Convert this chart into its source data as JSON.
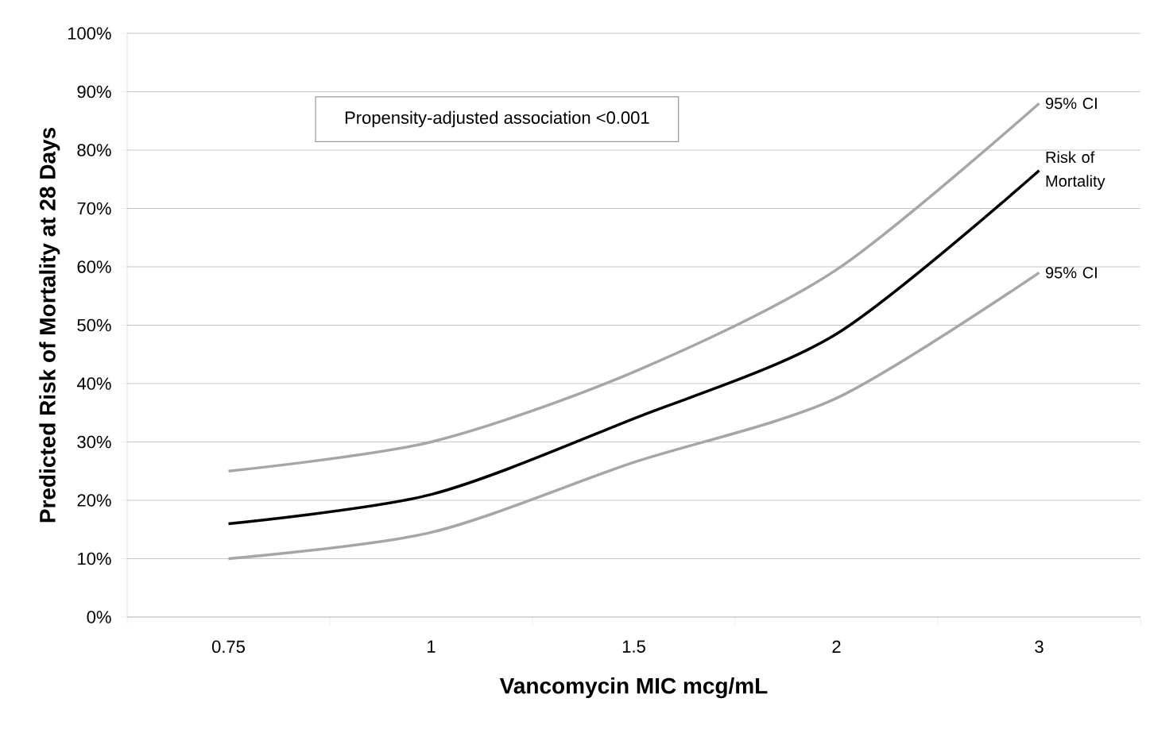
{
  "chart_data": {
    "type": "line",
    "xlabel": "Vancomycin MIC mcg/mL",
    "ylabel": "Predicted Risk of Mortality at 28 Days",
    "categories": [
      "0.75",
      "1",
      "1.5",
      "2",
      "3"
    ],
    "series": [
      {
        "name": "95% CI",
        "color": "#a6a6a6",
        "values": [
          25,
          30,
          42,
          59.5,
          88
        ]
      },
      {
        "name": "Risk of Mortality",
        "color": "#000000",
        "values": [
          16,
          21,
          34,
          48.5,
          76.5
        ]
      },
      {
        "name": "95% CI",
        "color": "#a6a6a6",
        "values": [
          10,
          14.5,
          26.5,
          37.5,
          59
        ]
      }
    ],
    "annotations": [
      "Propensity-adjusted association <0.001"
    ],
    "ylim": [
      0,
      100
    ],
    "yticks": [
      {
        "value": 0,
        "label": "0%"
      },
      {
        "value": 10,
        "label": "10%"
      },
      {
        "value": 20,
        "label": "20%"
      },
      {
        "value": 30,
        "label": "30%"
      },
      {
        "value": 40,
        "label": "40%"
      },
      {
        "value": 50,
        "label": "50%"
      },
      {
        "value": 60,
        "label": "60%"
      },
      {
        "value": 70,
        "label": "70%"
      },
      {
        "value": 80,
        "label": "80%"
      },
      {
        "value": 90,
        "label": "90%"
      },
      {
        "value": 100,
        "label": "100%"
      }
    ],
    "grid": "y",
    "marker": "none",
    "line_style": "solid"
  }
}
